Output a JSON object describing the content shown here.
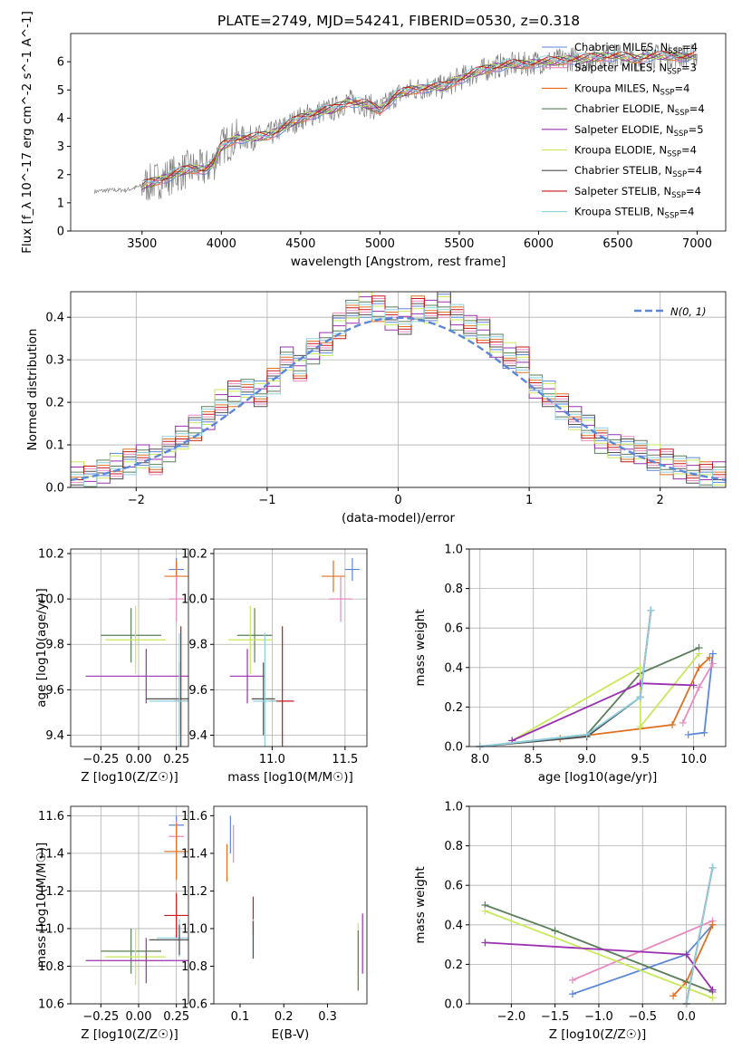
{
  "title": "PLATE=2749, MJD=54241, FIBERID=0530, z=0.318",
  "colors": {
    "chabrier_miles": "#5b87d9",
    "salpeter_miles": "#e88bc0",
    "kroupa_miles": "#e07020",
    "chabrier_elodie": "#5a7f5a",
    "salpeter_elodie": "#9a30b0",
    "kroupa_elodie": "#c8e85a",
    "chabrier_stelib": "#505050",
    "salpeter_stelib": "#c81818",
    "kroupa_stelib": "#8dd0e0",
    "data": "#808080"
  },
  "legend": [
    {
      "key": "chabrier_miles",
      "label": "Chabrier MILES, N",
      "sub": "SSP",
      "tail": "=4"
    },
    {
      "key": "salpeter_miles",
      "label": "Salpeter MILES, N",
      "sub": "SSP",
      "tail": "=3"
    },
    {
      "key": "kroupa_miles",
      "label": "Kroupa MILES, N",
      "sub": "SSP",
      "tail": "=4"
    },
    {
      "key": "chabrier_elodie",
      "label": "Chabrier ELODIE, N",
      "sub": "SSP",
      "tail": "=4"
    },
    {
      "key": "salpeter_elodie",
      "label": "Salpeter ELODIE, N",
      "sub": "SSP",
      "tail": "=5"
    },
    {
      "key": "kroupa_elodie",
      "label": "Kroupa ELODIE, N",
      "sub": "SSP",
      "tail": "=4"
    },
    {
      "key": "chabrier_stelib",
      "label": "Chabrier STELIB, N",
      "sub": "SSP",
      "tail": "=4"
    },
    {
      "key": "salpeter_stelib",
      "label": "Salpeter STELIB, N",
      "sub": "SSP",
      "tail": "=4"
    },
    {
      "key": "kroupa_stelib",
      "label": "Kroupa STELIB, N",
      "sub": "SSP",
      "tail": "=4"
    }
  ],
  "chart_data": [
    {
      "type": "line",
      "panel": "spectrum",
      "xlabel": "wavelength [Angstrom, rest frame]",
      "ylabel": "Flux [f_λ 10^-17 erg cm^-2 s^-1 A^-1]",
      "xlim": [
        3050,
        7180
      ],
      "ylim": [
        0,
        7
      ],
      "xticks": [
        3500,
        4000,
        4500,
        5000,
        5500,
        6000,
        6500,
        7000
      ],
      "yticks": [
        0,
        1,
        2,
        3,
        4,
        5,
        6
      ],
      "x": [
        3200,
        3300,
        3400,
        3500,
        3600,
        3700,
        3800,
        3900,
        3950,
        4000,
        4100,
        4200,
        4300,
        4400,
        4500,
        4600,
        4700,
        4800,
        4900,
        5000,
        5100,
        5200,
        5300,
        5400,
        5500,
        5600,
        5700,
        5800,
        5900,
        6000,
        6100,
        6200,
        6300,
        6400,
        6500,
        6600,
        6700,
        6800,
        6900,
        7000
      ],
      "model": [
        1.4,
        1.45,
        1.45,
        1.6,
        1.8,
        2.0,
        2.2,
        2.2,
        2.4,
        3.0,
        3.3,
        3.3,
        3.4,
        3.7,
        4.0,
        4.2,
        4.3,
        4.6,
        4.5,
        4.3,
        4.8,
        5.0,
        5.1,
        5.1,
        5.4,
        5.6,
        5.8,
        5.9,
        5.9,
        6.0,
        6.0,
        6.1,
        6.1,
        6.2,
        6.2,
        6.1,
        6.2,
        6.2,
        6.2,
        6.2
      ]
    },
    {
      "type": "bar",
      "panel": "residual histogram",
      "xlabel": "(data-model)/error",
      "ylabel": "Normed distribution",
      "xlim": [
        -2.5,
        2.5
      ],
      "ylim": [
        0,
        0.46
      ],
      "xticks": [
        -2,
        -1,
        0,
        1,
        2
      ],
      "yticks": [
        0.0,
        0.1,
        0.2,
        0.3,
        0.4
      ],
      "bin_width": 0.1,
      "bin_start": -2.5,
      "values": [
        0.03,
        0.02,
        0.04,
        0.05,
        0.06,
        0.07,
        0.06,
        0.09,
        0.12,
        0.14,
        0.16,
        0.2,
        0.22,
        0.23,
        0.22,
        0.25,
        0.3,
        0.28,
        0.32,
        0.34,
        0.38,
        0.41,
        0.43,
        0.42,
        0.4,
        0.39,
        0.42,
        0.41,
        0.43,
        0.4,
        0.38,
        0.37,
        0.33,
        0.31,
        0.3,
        0.24,
        0.22,
        0.19,
        0.16,
        0.14,
        0.11,
        0.1,
        0.09,
        0.08,
        0.07,
        0.06,
        0.05,
        0.04,
        0.03,
        0.03
      ],
      "gauss_label": "N(0, 1)"
    },
    {
      "type": "scatter",
      "panel": "age vs Z",
      "xlabel": "Z [log10(Z/Z☉)]",
      "ylabel": "age  [log10(age/yr)]",
      "xlim": [
        -0.45,
        0.33
      ],
      "ylim": [
        9.35,
        10.22
      ],
      "xticks": [
        -0.25,
        0.0,
        0.25
      ],
      "yticks": [
        9.4,
        9.6,
        9.8,
        10.0,
        10.2
      ],
      "points": [
        {
          "key": "chabrier_miles",
          "x": 0.25,
          "y": 10.13,
          "xerr": 0.05,
          "yerr": 0.05
        },
        {
          "key": "kroupa_miles",
          "x": 0.25,
          "y": 10.1,
          "xerr": 0.08,
          "yerr": 0.07
        },
        {
          "key": "salpeter_miles",
          "x": 0.25,
          "y": 10.0,
          "xerr": 0.05,
          "yerr": 0.1
        },
        {
          "key": "chabrier_elodie",
          "x": -0.05,
          "y": 9.84,
          "xerr": 0.2,
          "yerr": 0.12
        },
        {
          "key": "kroupa_elodie",
          "x": -0.02,
          "y": 9.82,
          "xerr": 0.2,
          "yerr": 0.15
        },
        {
          "key": "salpeter_elodie",
          "x": 0.05,
          "y": 9.66,
          "xerr": 0.4,
          "yerr": 0.12
        },
        {
          "key": "chabrier_stelib",
          "x": 0.27,
          "y": 9.56,
          "xerr": 0.22,
          "yerr": 0.16
        },
        {
          "key": "salpeter_stelib",
          "x": 0.28,
          "y": 9.55,
          "xerr": 0.05,
          "yerr": 0.33
        },
        {
          "key": "kroupa_stelib",
          "x": 0.27,
          "y": 9.55,
          "xerr": 0.2,
          "yerr": 0.3
        }
      ]
    },
    {
      "type": "scatter",
      "panel": "age vs mass",
      "xlabel": "mass [log10(M/M☉)]",
      "ylabel": "",
      "xlim": [
        10.6,
        11.65
      ],
      "ylim": [
        9.35,
        10.22
      ],
      "xticks": [
        11.0,
        11.5
      ],
      "yticks": [
        9.4,
        9.6,
        9.8,
        10.0,
        10.2
      ],
      "points": [
        {
          "key": "chabrier_miles",
          "x": 11.55,
          "y": 10.13,
          "xerr": 0.05,
          "yerr": 0.05
        },
        {
          "key": "kroupa_miles",
          "x": 11.42,
          "y": 10.1,
          "xerr": 0.08,
          "yerr": 0.07
        },
        {
          "key": "salpeter_miles",
          "x": 11.47,
          "y": 10.0,
          "xerr": 0.08,
          "yerr": 0.1
        },
        {
          "key": "chabrier_elodie",
          "x": 10.88,
          "y": 9.84,
          "xerr": 0.12,
          "yerr": 0.12
        },
        {
          "key": "kroupa_elodie",
          "x": 10.85,
          "y": 9.82,
          "xerr": 0.15,
          "yerr": 0.15
        },
        {
          "key": "salpeter_elodie",
          "x": 10.83,
          "y": 9.66,
          "xerr": 0.12,
          "yerr": 0.12
        },
        {
          "key": "chabrier_stelib",
          "x": 10.94,
          "y": 9.56,
          "xerr": 0.08,
          "yerr": 0.16
        },
        {
          "key": "salpeter_stelib",
          "x": 11.07,
          "y": 9.55,
          "xerr": 0.08,
          "yerr": 0.33
        },
        {
          "key": "kroupa_stelib",
          "x": 10.95,
          "y": 9.55,
          "xerr": 0.08,
          "yerr": 0.3
        }
      ]
    },
    {
      "type": "line",
      "panel": "mass weight vs age",
      "xlabel": "age  [log10(age/yr)]",
      "ylabel": "mass weight",
      "xlim": [
        7.9,
        10.3
      ],
      "ylim": [
        0,
        1.0
      ],
      "xticks": [
        8.0,
        8.5,
        9.0,
        9.5,
        10.0
      ],
      "yticks": [
        0.0,
        0.2,
        0.4,
        0.6,
        0.8,
        1.0
      ],
      "series": [
        {
          "key": "chabrier_miles",
          "x": [
            9.95,
            10.1,
            10.18
          ],
          "y": [
            0.06,
            0.07,
            0.47
          ]
        },
        {
          "key": "kroupa_miles",
          "x": [
            8.75,
            9.8,
            10.05,
            10.15
          ],
          "y": [
            0.04,
            0.11,
            0.4,
            0.45
          ]
        },
        {
          "key": "salpeter_miles",
          "x": [
            9.9,
            10.05,
            10.18
          ],
          "y": [
            0.12,
            0.3,
            0.42
          ]
        },
        {
          "key": "chabrier_elodie",
          "x": [
            8.0,
            9.0,
            9.5,
            10.05
          ],
          "y": [
            0.0,
            0.06,
            0.37,
            0.5
          ]
        },
        {
          "key": "kroupa_elodie",
          "x": [
            8.3,
            9.5,
            9.5,
            10.05
          ],
          "y": [
            0.03,
            0.4,
            0.1,
            0.47
          ]
        },
        {
          "key": "salpeter_elodie",
          "x": [
            8.3,
            9.5,
            10.0
          ],
          "y": [
            0.03,
            0.32,
            0.31
          ]
        },
        {
          "key": "chabrier_stelib",
          "x": [
            8.0,
            9.0,
            9.5,
            9.6
          ],
          "y": [
            0.0,
            0.05,
            0.25,
            0.69
          ]
        },
        {
          "key": "salpeter_stelib",
          "x": [
            9.5,
            9.6
          ],
          "y": [
            0.25,
            0.69
          ]
        },
        {
          "key": "kroupa_stelib",
          "x": [
            8.0,
            9.0,
            9.5,
            9.6
          ],
          "y": [
            0.0,
            0.06,
            0.25,
            0.69
          ]
        }
      ]
    },
    {
      "type": "scatter",
      "panel": "mass vs Z",
      "xlabel": "Z [log10(Z/Z☉)]",
      "ylabel": "mass [log10(M/M☉)]",
      "xlim": [
        -0.45,
        0.33
      ],
      "ylim": [
        10.6,
        11.65
      ],
      "xticks": [
        -0.25,
        0.0,
        0.25
      ],
      "yticks": [
        10.6,
        10.8,
        11.0,
        11.2,
        11.4,
        11.6
      ],
      "points": [
        {
          "key": "chabrier_miles",
          "x": 0.25,
          "y": 11.55,
          "xerr": 0.05,
          "yerr": 0.05
        },
        {
          "key": "salpeter_miles",
          "x": 0.25,
          "y": 11.49,
          "xerr": 0.05,
          "yerr": 0.08
        },
        {
          "key": "kroupa_miles",
          "x": 0.25,
          "y": 11.41,
          "xerr": 0.08,
          "yerr": 0.15
        },
        {
          "key": "salpeter_stelib",
          "x": 0.25,
          "y": 11.07,
          "xerr": 0.08,
          "yerr": 0.12
        },
        {
          "key": "kroupa_stelib",
          "x": 0.27,
          "y": 10.95,
          "xerr": 0.15,
          "yerr": 0.1
        },
        {
          "key": "chabrier_stelib",
          "x": 0.27,
          "y": 10.94,
          "xerr": 0.2,
          "yerr": 0.08
        },
        {
          "key": "chabrier_elodie",
          "x": -0.05,
          "y": 10.88,
          "xerr": 0.2,
          "yerr": 0.12
        },
        {
          "key": "kroupa_elodie",
          "x": -0.02,
          "y": 10.85,
          "xerr": 0.2,
          "yerr": 0.15
        },
        {
          "key": "salpeter_elodie",
          "x": 0.05,
          "y": 10.83,
          "xerr": 0.4,
          "yerr": 0.12
        }
      ]
    },
    {
      "type": "scatter",
      "panel": "mass vs E(B-V)",
      "xlabel": "E(B-V)",
      "ylabel": "",
      "xlim": [
        0.04,
        0.39
      ],
      "ylim": [
        10.6,
        11.65
      ],
      "xticks": [
        0.1,
        0.2,
        0.3
      ],
      "yticks": [
        10.6,
        10.8,
        11.0,
        11.2,
        11.4,
        11.6
      ],
      "points": [
        {
          "key": "chabrier_miles",
          "x": 0.078,
          "y": 11.5,
          "yerr": 0.1
        },
        {
          "key": "salpeter_miles",
          "x": 0.085,
          "y": 11.45,
          "yerr": 0.1
        },
        {
          "key": "kroupa_miles",
          "x": 0.07,
          "y": 11.35,
          "yerr": 0.1
        },
        {
          "key": "salpeter_stelib",
          "x": 0.13,
          "y": 11.07,
          "yerr": 0.1
        },
        {
          "key": "kroupa_stelib",
          "x": 0.13,
          "y": 10.95,
          "yerr": 0.1
        },
        {
          "key": "chabrier_stelib",
          "x": 0.13,
          "y": 10.94,
          "yerr": 0.1
        },
        {
          "key": "salpeter_elodie",
          "x": 0.38,
          "y": 10.92,
          "yerr": 0.16
        },
        {
          "key": "kroupa_elodie",
          "x": 0.37,
          "y": 10.85,
          "yerr": 0.18
        },
        {
          "key": "chabrier_elodie",
          "x": 0.37,
          "y": 10.83,
          "yerr": 0.16
        }
      ]
    },
    {
      "type": "line",
      "panel": "mass weight vs Z",
      "xlabel": "Z [log10(Z/Z☉)]",
      "ylabel": "mass weight",
      "xlim": [
        -2.48,
        0.45
      ],
      "ylim": [
        0,
        1.0
      ],
      "xticks": [
        -2.0,
        -1.5,
        -1.0,
        -0.5,
        0.0
      ],
      "yticks": [
        0.0,
        0.2,
        0.4,
        0.6,
        0.8,
        1.0
      ],
      "series": [
        {
          "key": "chabrier_miles",
          "x": [
            -1.3,
            0.0,
            0.3
          ],
          "y": [
            0.05,
            0.25,
            0.4
          ]
        },
        {
          "key": "salpeter_miles",
          "x": [
            -1.3,
            0.3
          ],
          "y": [
            0.12,
            0.42
          ]
        },
        {
          "key": "kroupa_miles",
          "x": [
            -0.15,
            0.0,
            0.3
          ],
          "y": [
            0.04,
            0.11,
            0.4
          ]
        },
        {
          "key": "chabrier_elodie",
          "x": [
            -2.3,
            -1.5,
            0.3
          ],
          "y": [
            0.5,
            0.37,
            0.06
          ]
        },
        {
          "key": "kroupa_elodie",
          "x": [
            -2.3,
            0.3
          ],
          "y": [
            0.47,
            0.03
          ]
        },
        {
          "key": "salpeter_elodie",
          "x": [
            -2.3,
            0.0,
            0.3
          ],
          "y": [
            0.31,
            0.25,
            0.07
          ]
        },
        {
          "key": "chabrier_stelib",
          "x": [
            0.0,
            0.3
          ],
          "y": [
            0.0,
            0.69
          ]
        },
        {
          "key": "salpeter_stelib",
          "x": [
            0.0,
            0.3
          ],
          "y": [
            0.0,
            0.69
          ]
        },
        {
          "key": "kroupa_stelib",
          "x": [
            0.0,
            0.3
          ],
          "y": [
            0.0,
            0.69
          ]
        }
      ]
    }
  ]
}
